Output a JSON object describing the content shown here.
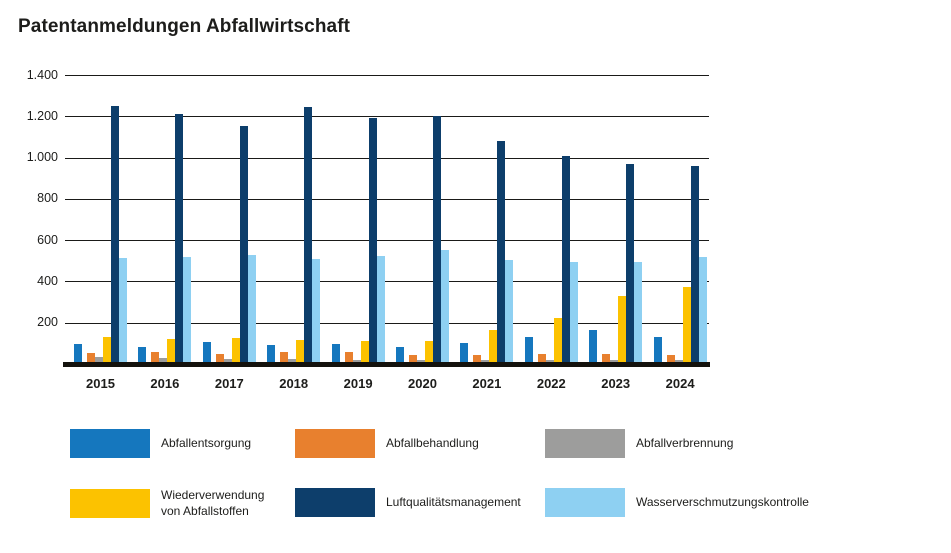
{
  "chart_data": {
    "type": "bar",
    "title": "Patentanmeldungen Abfallwirtschaft",
    "categories": [
      "2015",
      "2016",
      "2017",
      "2018",
      "2019",
      "2020",
      "2021",
      "2022",
      "2023",
      "2024"
    ],
    "series": [
      {
        "name": "Abfallentsorgung",
        "color": "#1577be",
        "values": [
          95,
          80,
          105,
          90,
          95,
          80,
          100,
          130,
          165,
          130
        ]
      },
      {
        "name": "Abfallbehandlung",
        "color": "#e8802e",
        "values": [
          55,
          60,
          50,
          60,
          60,
          45,
          45,
          50,
          50,
          45
        ]
      },
      {
        "name": "Abfallverbrennung",
        "color": "#9d9d9c",
        "values": [
          35,
          30,
          25,
          25,
          20,
          20,
          20,
          20,
          20,
          20
        ]
      },
      {
        "name": "Wiederverwendung von Abfallstoffen",
        "color": "#fcc200",
        "values": [
          130,
          120,
          125,
          115,
          110,
          110,
          165,
          225,
          330,
          375
        ]
      },
      {
        "name": "Luftqualitätsmanagement",
        "color": "#0d3e6b",
        "values": [
          1250,
          1210,
          1155,
          1245,
          1190,
          1200,
          1080,
          1010,
          970,
          960
        ]
      },
      {
        "name": "Wasserverschmutzungskontrolle",
        "color": "#8ed0f2",
        "values": [
          515,
          520,
          530,
          510,
          525,
          550,
          505,
          495,
          495,
          520
        ]
      }
    ],
    "ylim": [
      0,
      1400
    ],
    "yticks": [
      {
        "value": 1400,
        "label": "1.400"
      },
      {
        "value": 1200,
        "label": "1.200"
      },
      {
        "value": 1000,
        "label": "1.000"
      },
      {
        "value": 800,
        "label": "800"
      },
      {
        "value": 600,
        "label": "600"
      },
      {
        "value": 400,
        "label": "400"
      },
      {
        "value": 200,
        "label": "200"
      }
    ],
    "grid": true,
    "legend_position": "bottom",
    "text_color": "#1d1d1b",
    "gridline_color": "#1a1a18",
    "baseline_color": "#14120d"
  }
}
